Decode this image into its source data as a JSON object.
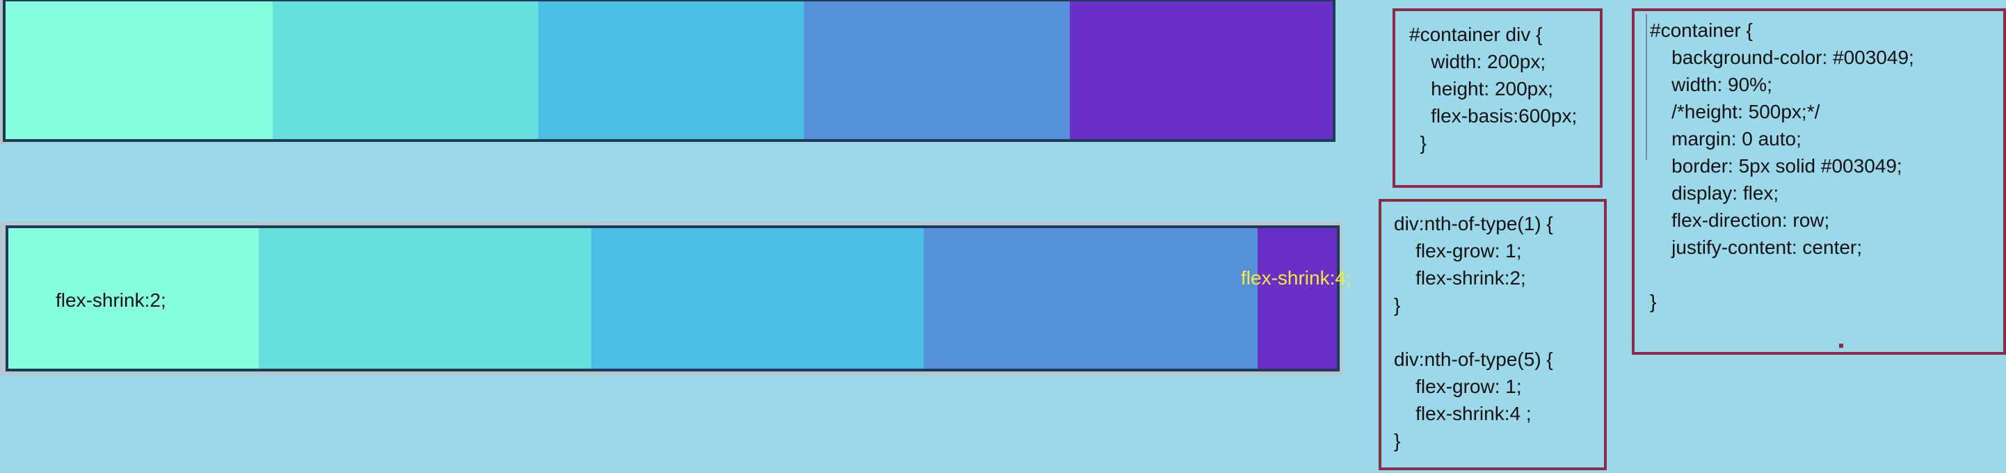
{
  "top_row": {
    "colors": [
      "#86fddc",
      "#66e0df",
      "#4bbfe3",
      "#5590d8",
      "#6a2fc6"
    ]
  },
  "bottom_row": {
    "colors": [
      "#86fddc",
      "#66e0df",
      "#4bbfe3",
      "#5590d8",
      "#6a2fc6"
    ],
    "first_label": "flex-shrink:2;",
    "last_label": "flex-shrink:4;"
  },
  "code_boxes": {
    "container_div": [
      "#container div {",
      "    width: 200px;",
      "    height: 200px;",
      "    flex-basis:600px;",
      "  }"
    ],
    "nth_of_type": [
      "div:nth-of-type(1) {",
      "    flex-grow: 1;",
      "    flex-shrink:2;",
      "}",
      "",
      "div:nth-of-type(5) {",
      "    flex-grow: 1;",
      "    flex-shrink:4 ;",
      "}"
    ],
    "container": [
      "#container {",
      "    background-color: #003049;",
      "    width: 90%;",
      "    /*height: 500px;*/",
      "    margin: 0 auto;",
      "    border: 5px solid #003049;",
      "    display: flex;",
      "    flex-direction: row;",
      "    justify-content: center;",
      "",
      "}"
    ]
  },
  "colors": {
    "background": "#9bd8ea",
    "border_dark": "#1f3a55",
    "code_border": "#8b2d4a",
    "highlight_text": "#f3ea3f"
  }
}
